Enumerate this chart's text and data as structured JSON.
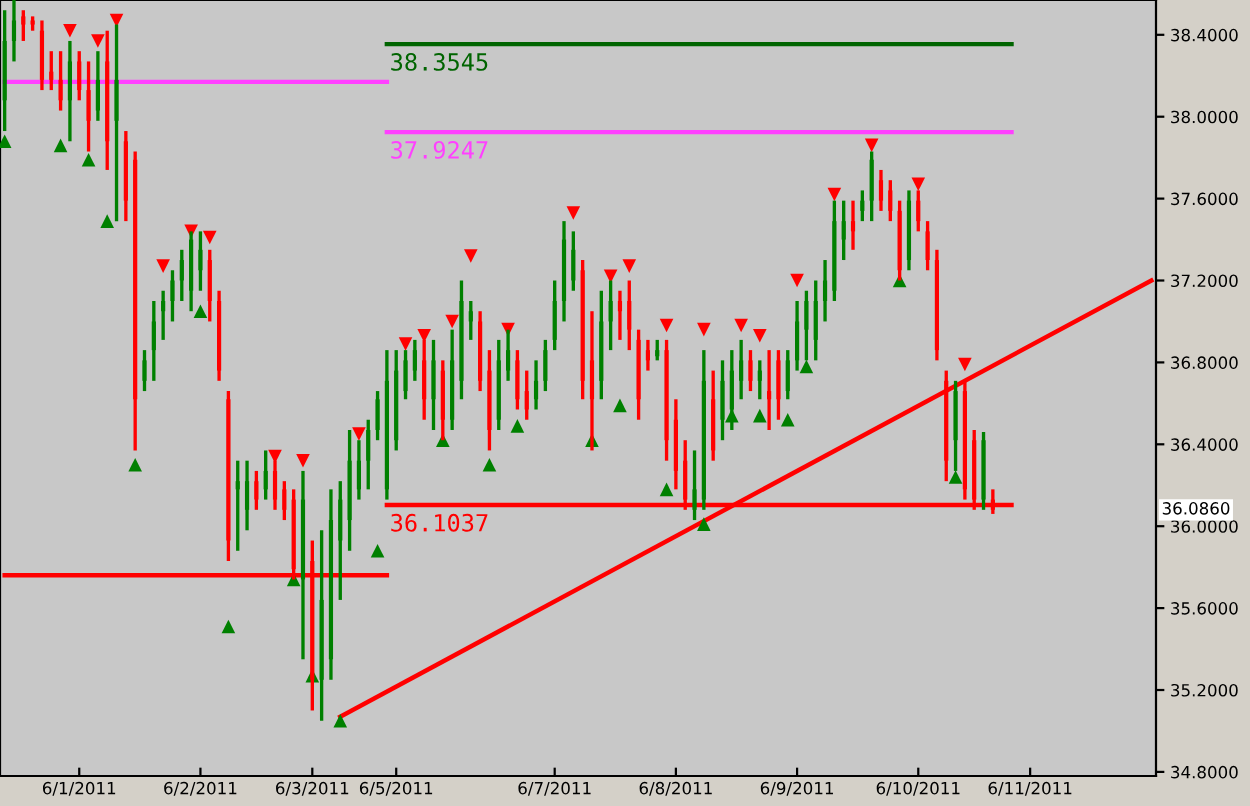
{
  "chart_data": {
    "type": "candlestick",
    "categories": [
      null,
      null,
      null,
      null,
      null,
      null,
      null,
      null,
      "6/1/2011",
      null,
      null,
      null,
      null,
      null,
      null,
      null,
      null,
      null,
      null,
      null,
      null,
      "6/2/2011",
      null,
      null,
      null,
      null,
      null,
      null,
      null,
      null,
      null,
      null,
      null,
      "6/3/2011",
      null,
      null,
      null,
      null,
      null,
      null,
      null,
      null,
      "6/5/2011",
      null,
      null,
      null,
      null,
      null,
      null,
      null,
      null,
      null,
      null,
      null,
      null,
      null,
      null,
      null,
      null,
      "6/7/2011",
      null,
      null,
      null,
      null,
      null,
      null,
      null,
      null,
      null,
      null,
      null,
      null,
      "6/8/2011",
      null,
      null,
      null,
      null,
      null,
      null,
      null,
      null,
      null,
      null,
      null,
      null,
      "6/9/2011",
      null,
      null,
      null,
      null,
      null,
      null,
      null,
      null,
      null,
      null,
      null,
      null,
      "6/10/2011",
      null,
      null,
      null,
      null,
      null,
      null,
      null,
      null,
      null,
      null,
      null,
      "6/11/2011",
      null,
      null,
      null,
      null,
      null,
      null,
      null,
      null,
      null,
      null,
      null,
      null,
      null
    ],
    "ohlc": [
      [
        38.08,
        38.52,
        37.93,
        38.37
      ],
      [
        38.37,
        38.57,
        38.27,
        38.47
      ],
      [
        38.49,
        38.52,
        38.37,
        38.45
      ],
      [
        38.47,
        38.49,
        38.42,
        38.45
      ],
      [
        38.42,
        38.47,
        38.13,
        38.18
      ],
      [
        38.22,
        38.32,
        38.13,
        38.18
      ],
      [
        38.18,
        38.32,
        38.03,
        38.08
      ],
      [
        38.08,
        38.37,
        37.88,
        38.27
      ],
      [
        38.27,
        38.32,
        38.08,
        38.13
      ],
      [
        38.13,
        38.27,
        37.83,
        37.98
      ],
      [
        38.03,
        38.32,
        37.98,
        38.18
      ],
      [
        38.27,
        38.42,
        37.74,
        37.88
      ],
      [
        37.98,
        38.45,
        37.49,
        38.18
      ],
      [
        37.88,
        37.93,
        37.49,
        37.59
      ],
      [
        37.79,
        37.83,
        36.37,
        36.62
      ],
      [
        36.71,
        36.86,
        36.66,
        36.81
      ],
      [
        36.86,
        37.1,
        36.71,
        37.0
      ],
      [
        37.05,
        37.15,
        36.91,
        37.1
      ],
      [
        37.1,
        37.25,
        37.0,
        37.2
      ],
      [
        37.2,
        37.35,
        37.1,
        37.3
      ],
      [
        37.15,
        37.44,
        37.05,
        37.4
      ],
      [
        37.25,
        37.44,
        37.15,
        37.35
      ],
      [
        37.3,
        37.35,
        37.0,
        37.1
      ],
      [
        37.1,
        37.15,
        36.71,
        36.76
      ],
      [
        36.62,
        36.66,
        35.83,
        35.93
      ],
      [
        36.18,
        36.32,
        35.88,
        36.22
      ],
      [
        36.08,
        36.32,
        35.98,
        36.22
      ],
      [
        36.22,
        36.27,
        36.08,
        36.13
      ],
      [
        36.18,
        36.37,
        36.13,
        36.27
      ],
      [
        36.27,
        36.32,
        36.08,
        36.13
      ],
      [
        36.18,
        36.22,
        36.03,
        36.08
      ],
      [
        36.13,
        36.18,
        35.74,
        35.79
      ],
      [
        35.74,
        36.27,
        35.35,
        36.13
      ],
      [
        35.83,
        35.93,
        35.1,
        35.25
      ],
      [
        35.25,
        35.98,
        35.05,
        35.64
      ],
      [
        35.35,
        36.18,
        35.25,
        36.03
      ],
      [
        35.93,
        36.22,
        35.64,
        36.13
      ],
      [
        36.03,
        36.47,
        35.88,
        36.32
      ],
      [
        36.18,
        36.42,
        36.13,
        36.32
      ],
      [
        36.32,
        36.52,
        36.18,
        36.47
      ],
      [
        36.47,
        36.66,
        36.42,
        36.62
      ],
      [
        36.18,
        36.86,
        36.13,
        36.71
      ],
      [
        36.42,
        36.86,
        36.37,
        36.76
      ],
      [
        36.66,
        36.86,
        36.62,
        36.81
      ],
      [
        36.76,
        36.91,
        36.71,
        36.86
      ],
      [
        36.81,
        36.91,
        36.52,
        36.62
      ],
      [
        36.62,
        36.91,
        36.47,
        36.81
      ],
      [
        36.76,
        36.81,
        36.42,
        36.52
      ],
      [
        36.52,
        36.96,
        36.47,
        36.81
      ],
      [
        36.71,
        37.2,
        36.62,
        37.1
      ],
      [
        37.0,
        37.1,
        36.91,
        37.05
      ],
      [
        37.0,
        37.05,
        36.66,
        36.71
      ],
      [
        36.76,
        36.86,
        36.37,
        36.47
      ],
      [
        36.52,
        36.91,
        36.47,
        36.81
      ],
      [
        36.76,
        36.96,
        36.71,
        36.86
      ],
      [
        36.81,
        36.86,
        36.57,
        36.62
      ],
      [
        36.66,
        36.76,
        36.52,
        36.57
      ],
      [
        36.62,
        36.81,
        36.57,
        36.71
      ],
      [
        36.71,
        36.91,
        36.66,
        36.86
      ],
      [
        36.91,
        37.2,
        36.86,
        37.1
      ],
      [
        37.1,
        37.49,
        37.0,
        37.4
      ],
      [
        37.2,
        37.44,
        37.15,
        37.35
      ],
      [
        37.25,
        37.3,
        36.62,
        36.71
      ],
      [
        36.81,
        37.05,
        36.37,
        36.62
      ],
      [
        36.71,
        37.15,
        36.62,
        37.0
      ],
      [
        37.0,
        37.2,
        36.86,
        37.1
      ],
      [
        37.1,
        37.15,
        36.91,
        37.05
      ],
      [
        37.1,
        37.2,
        36.86,
        36.96
      ],
      [
        36.91,
        36.96,
        36.52,
        36.62
      ],
      [
        36.86,
        36.91,
        36.76,
        36.81
      ],
      [
        36.83,
        36.91,
        36.81,
        36.86
      ],
      [
        36.86,
        36.91,
        36.32,
        36.42
      ],
      [
        36.52,
        36.62,
        36.18,
        36.27
      ],
      [
        36.32,
        36.42,
        36.08,
        36.13
      ],
      [
        36.08,
        36.37,
        36.03,
        36.18
      ],
      [
        36.13,
        36.86,
        36.08,
        36.71
      ],
      [
        36.62,
        36.76,
        36.32,
        36.37
      ],
      [
        36.52,
        36.81,
        36.42,
        36.71
      ],
      [
        36.57,
        36.86,
        36.47,
        36.76
      ],
      [
        36.71,
        36.91,
        36.62,
        36.81
      ],
      [
        36.81,
        36.86,
        36.66,
        36.71
      ],
      [
        36.71,
        36.81,
        36.62,
        36.76
      ],
      [
        36.66,
        36.86,
        36.47,
        36.62
      ],
      [
        36.81,
        36.86,
        36.52,
        36.62
      ],
      [
        36.66,
        36.86,
        36.62,
        36.81
      ],
      [
        36.81,
        37.1,
        36.76,
        37.0
      ],
      [
        36.96,
        37.15,
        36.81,
        37.1
      ],
      [
        36.91,
        37.2,
        36.81,
        37.1
      ],
      [
        37.1,
        37.3,
        37.0,
        37.2
      ],
      [
        37.15,
        37.59,
        37.1,
        37.49
      ],
      [
        37.4,
        37.59,
        37.3,
        37.49
      ],
      [
        37.49,
        37.59,
        37.35,
        37.44
      ],
      [
        37.54,
        37.64,
        37.49,
        37.59
      ],
      [
        37.59,
        37.83,
        37.49,
        37.79
      ],
      [
        37.69,
        37.74,
        37.54,
        37.59
      ],
      [
        37.64,
        37.69,
        37.49,
        37.54
      ],
      [
        37.54,
        37.59,
        37.2,
        37.25
      ],
      [
        37.3,
        37.64,
        37.25,
        37.59
      ],
      [
        37.59,
        37.64,
        37.44,
        37.49
      ],
      [
        37.44,
        37.49,
        37.25,
        37.3
      ],
      [
        37.3,
        37.35,
        36.81,
        36.86
      ],
      [
        36.71,
        36.76,
        36.22,
        36.32
      ],
      [
        36.42,
        36.71,
        36.27,
        36.66
      ],
      [
        36.66,
        36.71,
        36.13,
        36.18
      ],
      [
        36.42,
        36.47,
        36.08,
        36.13
      ],
      [
        36.13,
        36.46,
        36.08,
        36.42
      ],
      [
        36.13,
        36.18,
        36.06,
        36.08
      ],
      null,
      null,
      null,
      null,
      null,
      null,
      null,
      null,
      null,
      null,
      null,
      null,
      null,
      null,
      null,
      null,
      null
    ],
    "colors": [
      "#008000",
      "#008000",
      "#ff0000",
      "#ff0000",
      "#ff0000",
      "#ff0000",
      "#ff0000",
      "#008000",
      "#ff0000",
      "#ff0000",
      "#008000",
      "#ff0000",
      "#008000",
      "#ff0000",
      "#ff0000",
      "#008000",
      "#008000",
      "#008000",
      "#008000",
      "#008000",
      "#008000",
      "#008000",
      "#ff0000",
      "#ff0000",
      "#ff0000",
      "#008000",
      "#008000",
      "#ff0000",
      "#008000",
      "#ff0000",
      "#ff0000",
      "#ff0000",
      "#008000",
      "#ff0000",
      "#008000",
      "#008000",
      "#008000",
      "#008000",
      "#008000",
      "#008000",
      "#008000",
      "#008000",
      "#008000",
      "#008000",
      "#008000",
      "#ff0000",
      "#008000",
      "#ff0000",
      "#008000",
      "#008000",
      "#008000",
      "#ff0000",
      "#ff0000",
      "#008000",
      "#008000",
      "#ff0000",
      "#ff0000",
      "#008000",
      "#008000",
      "#008000",
      "#008000",
      "#008000",
      "#ff0000",
      "#ff0000",
      "#008000",
      "#008000",
      "#ff0000",
      "#ff0000",
      "#ff0000",
      "#ff0000",
      "#008000",
      "#ff0000",
      "#ff0000",
      "#ff0000",
      "#008000",
      "#008000",
      "#ff0000",
      "#008000",
      "#008000",
      "#008000",
      "#ff0000",
      "#008000",
      "#ff0000",
      "#ff0000",
      "#008000",
      "#008000",
      "#008000",
      "#008000",
      "#008000",
      "#008000",
      "#008000",
      "#ff0000",
      "#008000",
      "#008000",
      "#ff0000",
      "#ff0000",
      "#ff0000",
      "#008000",
      "#ff0000",
      "#ff0000",
      "#ff0000",
      "#ff0000",
      "#008000",
      "#ff0000",
      "#ff0000",
      "#008000",
      "#ff0000",
      null,
      null,
      null,
      null,
      null,
      null,
      null,
      null,
      null,
      null,
      null,
      null,
      null,
      null,
      null,
      null,
      null
    ],
    "series": [
      {
        "type": "line",
        "name": "38.3545",
        "color": "#006400",
        "values": [
          null,
          null,
          null,
          null,
          null,
          null,
          null,
          null,
          null,
          null,
          null,
          null,
          null,
          null,
          null,
          null,
          null,
          null,
          null,
          null,
          null,
          null,
          null,
          null,
          null,
          null,
          null,
          null,
          null,
          null,
          null,
          null,
          null,
          null,
          null,
          null,
          null,
          null,
          null,
          null,
          null,
          38.3545,
          null,
          null,
          null,
          null,
          null,
          null,
          null,
          null,
          null,
          null,
          null,
          null,
          null,
          null,
          null,
          null,
          null,
          null,
          null,
          null,
          null,
          null,
          null,
          null,
          null,
          null,
          null,
          null,
          null,
          null,
          null,
          null,
          null,
          null,
          null,
          null,
          null,
          null,
          null,
          null,
          null,
          null,
          null,
          null,
          null,
          null,
          null,
          null,
          null,
          null,
          null,
          null,
          null,
          null,
          null,
          null,
          null,
          null,
          null,
          null,
          null,
          null,
          null,
          null,
          null,
          null,
          38.3545,
          null,
          null,
          null,
          null,
          null,
          null,
          null,
          null,
          null,
          null,
          null,
          null,
          null,
          null,
          null
        ]
      },
      {
        "type": "line",
        "name": "37.9247",
        "color": "#ff40ff",
        "values": [
          null,
          null,
          null,
          null,
          null,
          null,
          null,
          null,
          null,
          null,
          null,
          null,
          null,
          null,
          null,
          null,
          null,
          null,
          null,
          null,
          null,
          null,
          null,
          null,
          null,
          null,
          null,
          null,
          null,
          null,
          null,
          null,
          null,
          null,
          null,
          null,
          null,
          null,
          null,
          null,
          null,
          37.9247,
          null,
          null,
          null,
          null,
          null,
          null,
          null,
          null,
          null,
          null,
          null,
          null,
          null,
          null,
          null,
          null,
          null,
          null,
          null,
          null,
          null,
          null,
          null,
          null,
          null,
          null,
          null,
          null,
          null,
          null,
          null,
          null,
          null,
          null,
          null,
          null,
          null,
          null,
          null,
          null,
          null,
          null,
          null,
          null,
          null,
          null,
          null,
          null,
          null,
          null,
          null,
          null,
          null,
          null,
          null,
          null,
          null,
          null,
          null,
          null,
          null,
          null,
          null,
          null,
          null,
          null,
          37.9247,
          null,
          null,
          null,
          null,
          null,
          null,
          null,
          null,
          null,
          null,
          null,
          null,
          null,
          null,
          null
        ]
      },
      {
        "type": "line",
        "color": "#ff40ff",
        "values": [
          38.17,
          null,
          null,
          null,
          null,
          null,
          null,
          null,
          null,
          null,
          null,
          null,
          null,
          null,
          null,
          null,
          null,
          null,
          null,
          null,
          null,
          null,
          null,
          null,
          null,
          null,
          null,
          null,
          null,
          null,
          null,
          null,
          null,
          null,
          null,
          null,
          null,
          null,
          null,
          null,
          null,
          38.17,
          null,
          null,
          null,
          null,
          null,
          null,
          null,
          null,
          null,
          null,
          null,
          null,
          null,
          null,
          null,
          null,
          null,
          null,
          null,
          null,
          null,
          null,
          null,
          null,
          null,
          null,
          null,
          null,
          null,
          null,
          null,
          null,
          null,
          null,
          null,
          null,
          null,
          null,
          null,
          null,
          null,
          null,
          null,
          null,
          null,
          null,
          null,
          null,
          null,
          null,
          null,
          null,
          null,
          null,
          null,
          null,
          null,
          null,
          null,
          null,
          null,
          null,
          null,
          null,
          null,
          null,
          null,
          null,
          null,
          null,
          null,
          null,
          null,
          null,
          null,
          null,
          null,
          null,
          null,
          null,
          null,
          null
        ]
      },
      {
        "type": "line",
        "name": "36.1037",
        "color": "#ff0000",
        "values": [
          null,
          null,
          null,
          null,
          null,
          null,
          null,
          null,
          null,
          null,
          null,
          null,
          null,
          null,
          null,
          null,
          null,
          null,
          null,
          null,
          null,
          null,
          null,
          null,
          null,
          null,
          null,
          null,
          null,
          null,
          null,
          null,
          null,
          null,
          null,
          null,
          null,
          null,
          null,
          null,
          null,
          36.1037,
          null,
          null,
          null,
          null,
          null,
          null,
          null,
          null,
          null,
          null,
          null,
          null,
          null,
          null,
          null,
          null,
          null,
          null,
          null,
          null,
          null,
          null,
          null,
          null,
          null,
          null,
          null,
          null,
          null,
          null,
          null,
          null,
          null,
          null,
          null,
          null,
          null,
          null,
          null,
          null,
          null,
          null,
          null,
          null,
          null,
          null,
          null,
          null,
          null,
          null,
          null,
          null,
          null,
          null,
          null,
          null,
          null,
          null,
          null,
          null,
          null,
          null,
          null,
          null,
          null,
          null,
          36.1037,
          null,
          null,
          null,
          null,
          null,
          null,
          null,
          null,
          null,
          null,
          null,
          null,
          null,
          null,
          null
        ]
      },
      {
        "type": "line",
        "color": "#ff0000",
        "values": [
          35.76,
          null,
          null,
          null,
          null,
          null,
          null,
          null,
          null,
          null,
          null,
          null,
          null,
          null,
          null,
          null,
          null,
          null,
          null,
          null,
          null,
          null,
          null,
          null,
          null,
          null,
          null,
          null,
          null,
          null,
          null,
          null,
          null,
          null,
          null,
          null,
          null,
          null,
          null,
          null,
          null,
          35.76,
          null,
          null,
          null,
          null,
          null,
          null,
          null,
          null,
          null,
          null,
          null,
          null,
          null,
          null,
          null,
          null,
          null,
          null,
          null,
          null,
          null,
          null,
          null,
          null,
          null,
          null,
          null,
          null,
          null,
          null,
          null,
          null,
          null,
          null,
          null,
          null,
          null,
          null,
          null,
          null,
          null,
          null,
          null,
          null,
          null,
          null,
          null,
          null,
          null,
          null,
          null,
          null,
          null,
          null,
          null,
          null,
          null,
          null,
          null,
          null,
          null,
          null,
          null,
          null,
          null,
          null,
          null,
          null,
          null,
          null,
          null,
          null,
          null,
          null,
          null,
          null,
          null,
          null,
          null,
          null,
          null,
          null
        ]
      },
      {
        "type": "line",
        "color": "#ff0000",
        "values": [
          null,
          null,
          null,
          null,
          null,
          null,
          null,
          null,
          null,
          null,
          null,
          null,
          null,
          null,
          null,
          null,
          null,
          null,
          null,
          null,
          null,
          null,
          null,
          null,
          null,
          null,
          null,
          null,
          null,
          null,
          null,
          null,
          null,
          null,
          null,
          null,
          35.07,
          null,
          null,
          null,
          null,
          null,
          null,
          null,
          null,
          null,
          null,
          null,
          null,
          null,
          null,
          null,
          null,
          null,
          null,
          null,
          null,
          null,
          null,
          null,
          null,
          null,
          null,
          null,
          null,
          null,
          null,
          null,
          null,
          null,
          null,
          null,
          null,
          null,
          null,
          null,
          null,
          null,
          null,
          null,
          null,
          null,
          null,
          null,
          null,
          null,
          null,
          null,
          null,
          null,
          null,
          null,
          null,
          null,
          null,
          null,
          null,
          null,
          null,
          null,
          null,
          null,
          null,
          null,
          null,
          null,
          null,
          null,
          null,
          null,
          null,
          null,
          null,
          null,
          null,
          null,
          null,
          null,
          null,
          null,
          null,
          null,
          null,
          37.2
        ]
      },
      {
        "type": "scatter",
        "color": "#ff0000",
        "marker": "triangle",
        "values": [
          null,
          null,
          null,
          null,
          null,
          null,
          null,
          38.42,
          null,
          null,
          38.37,
          null,
          38.47,
          null,
          null,
          null,
          null,
          37.27,
          null,
          null,
          37.44,
          null,
          37.41,
          null,
          null,
          null,
          null,
          null,
          null,
          36.34,
          null,
          null,
          36.32,
          null,
          null,
          null,
          null,
          null,
          36.45,
          null,
          null,
          null,
          null,
          36.89,
          null,
          36.93,
          null,
          null,
          37.0,
          null,
          37.32,
          null,
          null,
          null,
          36.96,
          null,
          null,
          null,
          null,
          null,
          null,
          37.53,
          null,
          null,
          null,
          37.22,
          null,
          37.27,
          null,
          null,
          null,
          36.98,
          null,
          null,
          null,
          36.96,
          null,
          null,
          null,
          36.98,
          null,
          36.93,
          null,
          null,
          null,
          37.2,
          null,
          null,
          null,
          37.62,
          null,
          null,
          null,
          37.86,
          null,
          null,
          null,
          null,
          37.67,
          null,
          null,
          null,
          null,
          36.79,
          null,
          null,
          null,
          null,
          null,
          null,
          null,
          null,
          null,
          null,
          null,
          null,
          null,
          null,
          null,
          null,
          null,
          null,
          null,
          null
        ]
      },
      {
        "type": "scatter",
        "color": "#008000",
        "marker": "triangle",
        "values": [
          37.88,
          null,
          null,
          null,
          null,
          null,
          37.86,
          null,
          null,
          37.79,
          null,
          37.49,
          null,
          null,
          36.3,
          null,
          null,
          null,
          null,
          null,
          null,
          37.05,
          null,
          null,
          35.51,
          null,
          null,
          null,
          null,
          null,
          null,
          35.74,
          null,
          35.27,
          null,
          null,
          35.05,
          null,
          null,
          null,
          35.88,
          null,
          null,
          null,
          null,
          null,
          null,
          36.42,
          null,
          null,
          null,
          null,
          36.3,
          null,
          null,
          36.49,
          null,
          null,
          null,
          null,
          null,
          null,
          null,
          36.42,
          null,
          null,
          36.59,
          null,
          null,
          null,
          null,
          36.18,
          null,
          null,
          null,
          36.01,
          null,
          null,
          36.54,
          null,
          null,
          36.54,
          null,
          null,
          36.52,
          null,
          36.78,
          null,
          null,
          null,
          null,
          null,
          null,
          null,
          null,
          null,
          37.2,
          null,
          null,
          null,
          null,
          null,
          36.24,
          null,
          null,
          null,
          null,
          null,
          null,
          null,
          null,
          null,
          null,
          null,
          null,
          null,
          null,
          null,
          null,
          null,
          null,
          null,
          null,
          null
        ]
      }
    ],
    "annotations": [
      "36.0860"
    ],
    "ylim": [
      34.78,
      38.57
    ],
    "yticks": [
      {
        "value": 34.8,
        "label": "34.8000"
      },
      {
        "value": 35.2,
        "label": "35.2000"
      },
      {
        "value": 35.6,
        "label": "35.6000"
      },
      {
        "value": 36.0,
        "label": "36.0000"
      },
      {
        "value": 36.4,
        "label": "36.4000"
      },
      {
        "value": 36.8,
        "label": "36.8000"
      },
      {
        "value": 37.2,
        "label": "37.2000"
      },
      {
        "value": 37.6,
        "label": "37.6000"
      },
      {
        "value": 38.0,
        "label": "38.0000"
      },
      {
        "value": 38.4,
        "label": "38.4000"
      }
    ],
    "tick_labels": true
  }
}
